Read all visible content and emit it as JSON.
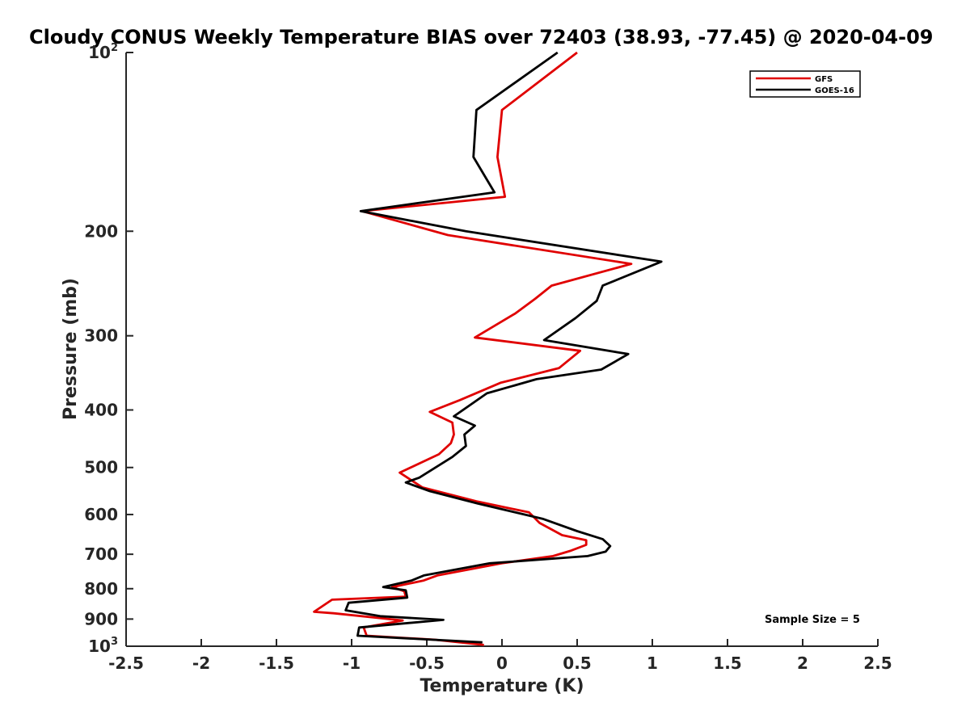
{
  "chart_data": {
    "type": "line",
    "title": "Cloudy CONUS Weekly Temperature BIAS over 72403 (38.93, -77.45) @ 2020-04-09",
    "xlabel": "Temperature (K)",
    "ylabel": "Pressure (mb)",
    "xlim": [
      -2.5,
      2.5
    ],
    "ylim": [
      100,
      1000
    ],
    "y_scale": "log",
    "y_reversed": true,
    "xticks": [
      "-2.5",
      "-2",
      "-1.5",
      "-1",
      "-0.5",
      "0",
      "0.5",
      "1",
      "1.5",
      "2",
      "2.5"
    ],
    "xtick_values": [
      -2.5,
      -2,
      -1.5,
      -1,
      -0.5,
      0,
      0.5,
      1,
      1.5,
      2,
      2.5
    ],
    "yticks": [
      {
        "value": 100,
        "base": "10",
        "exp": "2"
      },
      {
        "value": 200,
        "label": "200"
      },
      {
        "value": 300,
        "label": "300"
      },
      {
        "value": 400,
        "label": "400"
      },
      {
        "value": 500,
        "label": "500"
      },
      {
        "value": 600,
        "label": "600"
      },
      {
        "value": 700,
        "label": "700"
      },
      {
        "value": 800,
        "label": "800"
      },
      {
        "value": 900,
        "label": "900"
      },
      {
        "value": 1000,
        "base": "10",
        "exp": "3"
      }
    ],
    "grid": false,
    "legend_position": "top-right",
    "annotation": "Sample Size = 5",
    "series": [
      {
        "name": "GFS",
        "color": "#e00000",
        "points": [
          [
            0.5,
            100
          ],
          [
            0.0,
            125
          ],
          [
            -0.03,
            150
          ],
          [
            0.02,
            175
          ],
          [
            -0.93,
            185
          ],
          [
            -0.36,
            203
          ],
          [
            0.86,
            227
          ],
          [
            0.33,
            247
          ],
          [
            0.22,
            260
          ],
          [
            0.09,
            275
          ],
          [
            -0.18,
            302
          ],
          [
            0.52,
            318
          ],
          [
            0.38,
            340
          ],
          [
            -0.01,
            360
          ],
          [
            -0.28,
            385
          ],
          [
            -0.48,
            403
          ],
          [
            -0.33,
            420
          ],
          [
            -0.32,
            440
          ],
          [
            -0.34,
            455
          ],
          [
            -0.42,
            475
          ],
          [
            -0.68,
            510
          ],
          [
            -0.53,
            540
          ],
          [
            -0.17,
            570
          ],
          [
            0.18,
            595
          ],
          [
            0.25,
            620
          ],
          [
            0.4,
            650
          ],
          [
            0.56,
            663
          ],
          [
            0.56,
            675
          ],
          [
            0.46,
            690
          ],
          [
            0.34,
            705
          ],
          [
            0.0,
            725
          ],
          [
            -0.43,
            760
          ],
          [
            -0.52,
            775
          ],
          [
            -0.73,
            795
          ],
          [
            -0.65,
            808
          ],
          [
            -0.64,
            825
          ],
          [
            -1.13,
            835
          ],
          [
            -1.25,
            875
          ],
          [
            -1.12,
            880
          ],
          [
            -0.66,
            905
          ],
          [
            -0.92,
            930
          ],
          [
            -0.9,
            960
          ],
          [
            -0.45,
            975
          ],
          [
            -0.12,
            995
          ]
        ]
      },
      {
        "name": "GOES-16",
        "color": "#000000",
        "points": [
          [
            0.37,
            100
          ],
          [
            -0.17,
            125
          ],
          [
            -0.19,
            150
          ],
          [
            -0.05,
            172
          ],
          [
            -0.94,
            185
          ],
          [
            -0.24,
            200
          ],
          [
            1.06,
            225
          ],
          [
            0.67,
            247
          ],
          [
            0.63,
            262
          ],
          [
            0.49,
            280
          ],
          [
            0.28,
            305
          ],
          [
            0.84,
            322
          ],
          [
            0.66,
            342
          ],
          [
            0.23,
            355
          ],
          [
            -0.1,
            375
          ],
          [
            -0.32,
            410
          ],
          [
            -0.18,
            425
          ],
          [
            -0.25,
            440
          ],
          [
            -0.24,
            460
          ],
          [
            -0.33,
            480
          ],
          [
            -0.55,
            520
          ],
          [
            -0.64,
            530
          ],
          [
            -0.48,
            548
          ],
          [
            -0.16,
            575
          ],
          [
            0.27,
            610
          ],
          [
            0.5,
            640
          ],
          [
            0.67,
            660
          ],
          [
            0.72,
            678
          ],
          [
            0.69,
            693
          ],
          [
            0.57,
            705
          ],
          [
            -0.08,
            725
          ],
          [
            -0.52,
            760
          ],
          [
            -0.6,
            775
          ],
          [
            -0.79,
            795
          ],
          [
            -0.64,
            805
          ],
          [
            -0.63,
            828
          ],
          [
            -1.02,
            845
          ],
          [
            -1.04,
            870
          ],
          [
            -0.81,
            890
          ],
          [
            -0.39,
            903
          ],
          [
            -0.95,
            930
          ],
          [
            -0.96,
            960
          ],
          [
            -0.13,
            985
          ]
        ]
      }
    ]
  }
}
